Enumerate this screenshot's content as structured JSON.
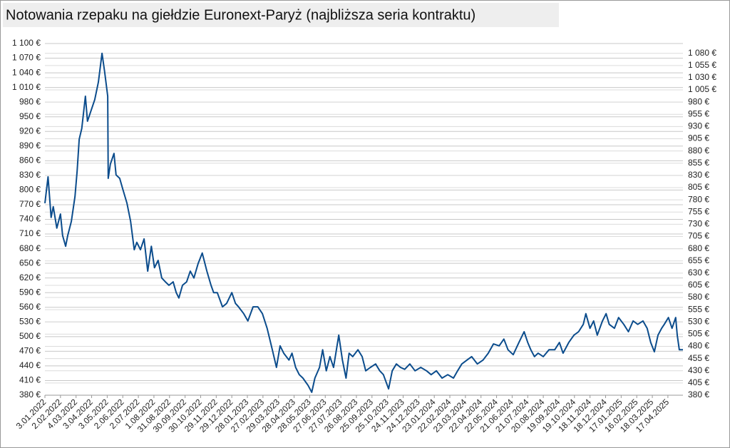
{
  "chart_data": {
    "type": "line",
    "title": "Notowania rzepaku na giełdzie Euronext-Paryż (najbliższa seria kontraktu)",
    "xlim": [
      "2022-01-03",
      "2025-05-16"
    ],
    "xticks": [
      {
        "value": "2022-01-03",
        "label": "3.01.2022"
      },
      {
        "value": "2022-02-02",
        "label": "2.02.2022"
      },
      {
        "value": "2022-03-04",
        "label": "4.03.2022"
      },
      {
        "value": "2022-04-03",
        "label": "3.04.2022"
      },
      {
        "value": "2022-05-03",
        "label": "3.05.2022"
      },
      {
        "value": "2022-06-02",
        "label": "2.06.2022"
      },
      {
        "value": "2022-07-02",
        "label": "2.07.2022"
      },
      {
        "value": "2022-08-01",
        "label": "1.08.2022"
      },
      {
        "value": "2022-08-31",
        "label": "31.08.2022"
      },
      {
        "value": "2022-09-30",
        "label": "30.09.2022"
      },
      {
        "value": "2022-10-30",
        "label": "30.10.2022"
      },
      {
        "value": "2022-11-29",
        "label": "29.11.2022"
      },
      {
        "value": "2022-12-29",
        "label": "29.12.2022"
      },
      {
        "value": "2023-01-28",
        "label": "28.01.2023"
      },
      {
        "value": "2023-02-27",
        "label": "27.02.2023"
      },
      {
        "value": "2023-03-29",
        "label": "29.03.2023"
      },
      {
        "value": "2023-04-28",
        "label": "28.04.2023"
      },
      {
        "value": "2023-05-28",
        "label": "28.05.2023"
      },
      {
        "value": "2023-06-27",
        "label": "27.06.2023"
      },
      {
        "value": "2023-07-27",
        "label": "27.07.2023"
      },
      {
        "value": "2023-08-26",
        "label": "26.08.2023"
      },
      {
        "value": "2023-09-25",
        "label": "25.09.2023"
      },
      {
        "value": "2023-10-25",
        "label": "25.10.2023"
      },
      {
        "value": "2023-11-24",
        "label": "24.11.2023"
      },
      {
        "value": "2023-12-24",
        "label": "24.12.2023"
      },
      {
        "value": "2024-01-23",
        "label": "23.01.2024"
      },
      {
        "value": "2024-02-22",
        "label": "22.02.2024"
      },
      {
        "value": "2024-03-23",
        "label": "23.03.2024"
      },
      {
        "value": "2024-04-22",
        "label": "22.04.2024"
      },
      {
        "value": "2024-05-22",
        "label": "22.05.2024"
      },
      {
        "value": "2024-06-21",
        "label": "21.06.2024"
      },
      {
        "value": "2024-07-21",
        "label": "21.07.2024"
      },
      {
        "value": "2024-08-20",
        "label": "20.08.2024"
      },
      {
        "value": "2024-09-19",
        "label": "19.09.2024"
      },
      {
        "value": "2024-10-19",
        "label": "19.10.2024"
      },
      {
        "value": "2024-11-18",
        "label": "18.11.2024"
      },
      {
        "value": "2024-12-18",
        "label": "18.12.2024"
      },
      {
        "value": "2025-01-17",
        "label": "17.01.2025"
      },
      {
        "value": "2025-02-16",
        "label": "16.02.2025"
      },
      {
        "value": "2025-03-18",
        "label": "18.03.2025"
      },
      {
        "value": "2025-04-17",
        "label": "17.04.2025"
      }
    ],
    "ylim": [
      380,
      1100
    ],
    "yticks": [
      {
        "value": 380,
        "label": "380 €"
      },
      {
        "value": 410,
        "label": "410 €"
      },
      {
        "value": 440,
        "label": "440 €"
      },
      {
        "value": 470,
        "label": "470 €"
      },
      {
        "value": 500,
        "label": "500 €"
      },
      {
        "value": 530,
        "label": "530 €"
      },
      {
        "value": 560,
        "label": "560 €"
      },
      {
        "value": 590,
        "label": "590 €"
      },
      {
        "value": 620,
        "label": "620 €"
      },
      {
        "value": 650,
        "label": "650 €"
      },
      {
        "value": 680,
        "label": "680 €"
      },
      {
        "value": 710,
        "label": "710 €"
      },
      {
        "value": 740,
        "label": "740 €"
      },
      {
        "value": 770,
        "label": "770 €"
      },
      {
        "value": 800,
        "label": "800 €"
      },
      {
        "value": 830,
        "label": "830 €"
      },
      {
        "value": 860,
        "label": "860 €"
      },
      {
        "value": 890,
        "label": "890 €"
      },
      {
        "value": 920,
        "label": "920 €"
      },
      {
        "value": 950,
        "label": "950 €"
      },
      {
        "value": 980,
        "label": "980 €"
      },
      {
        "value": 1010,
        "label": "1 010 €"
      },
      {
        "value": 1040,
        "label": "1 040 €"
      },
      {
        "value": 1070,
        "label": "1 070 €"
      },
      {
        "value": 1100,
        "label": "1 100 €"
      }
    ],
    "y2lim": [
      380,
      1100
    ],
    "y2ticks": [
      {
        "value": 380,
        "label": "380 €"
      },
      {
        "value": 405,
        "label": "405 €"
      },
      {
        "value": 430,
        "label": "430 €"
      },
      {
        "value": 455,
        "label": "455 €"
      },
      {
        "value": 480,
        "label": "480 €"
      },
      {
        "value": 505,
        "label": "505 €"
      },
      {
        "value": 530,
        "label": "530 €"
      },
      {
        "value": 555,
        "label": "555 €"
      },
      {
        "value": 580,
        "label": "580 €"
      },
      {
        "value": 605,
        "label": "605 €"
      },
      {
        "value": 630,
        "label": "630 €"
      },
      {
        "value": 655,
        "label": "655 €"
      },
      {
        "value": 680,
        "label": "680 €"
      },
      {
        "value": 705,
        "label": "705 €"
      },
      {
        "value": 730,
        "label": "730 €"
      },
      {
        "value": 755,
        "label": "755 €"
      },
      {
        "value": 780,
        "label": "780 €"
      },
      {
        "value": 805,
        "label": "805 €"
      },
      {
        "value": 830,
        "label": "830 €"
      },
      {
        "value": 855,
        "label": "855 €"
      },
      {
        "value": 880,
        "label": "880 €"
      },
      {
        "value": 905,
        "label": "905 €"
      },
      {
        "value": 930,
        "label": "930 €"
      },
      {
        "value": 955,
        "label": "955 €"
      },
      {
        "value": 980,
        "label": "980 €"
      },
      {
        "value": 1005,
        "label": "1 005 €"
      },
      {
        "value": 1030,
        "label": "1 030 €"
      },
      {
        "value": 1055,
        "label": "1 055 €"
      },
      {
        "value": 1080,
        "label": "1 080 €"
      }
    ],
    "grid": true,
    "x": [
      "2022-01-03",
      "2022-01-09",
      "2022-01-15",
      "2022-01-19",
      "2022-01-26",
      "2022-02-02",
      "2022-02-06",
      "2022-02-12",
      "2022-02-16",
      "2022-02-23",
      "2022-03-02",
      "2022-03-06",
      "2022-03-10",
      "2022-03-15",
      "2022-03-22",
      "2022-03-26",
      "2022-04-02",
      "2022-04-09",
      "2022-04-16",
      "2022-04-23",
      "2022-04-28",
      "2022-05-04",
      "2022-05-05",
      "2022-05-09",
      "2022-05-16",
      "2022-05-20",
      "2022-05-27",
      "2022-06-02",
      "2022-06-10",
      "2022-06-17",
      "2022-06-24",
      "2022-06-29",
      "2022-07-06",
      "2022-07-13",
      "2022-07-20",
      "2022-07-27",
      "2022-08-02",
      "2022-08-09",
      "2022-08-16",
      "2022-08-23",
      "2022-08-30",
      "2022-09-07",
      "2022-09-13",
      "2022-09-18",
      "2022-09-25",
      "2022-10-03",
      "2022-10-10",
      "2022-10-17",
      "2022-10-25",
      "2022-11-02",
      "2022-11-11",
      "2022-11-19",
      "2022-11-24",
      "2022-12-01",
      "2022-12-11",
      "2022-12-19",
      "2022-12-29",
      "2023-01-05",
      "2023-01-11",
      "2023-01-21",
      "2023-01-29",
      "2023-02-08",
      "2023-02-17",
      "2023-02-26",
      "2023-03-07",
      "2023-03-17",
      "2023-03-25",
      "2023-04-01",
      "2023-04-08",
      "2023-04-18",
      "2023-04-24",
      "2023-05-01",
      "2023-05-08",
      "2023-05-15",
      "2023-05-25",
      "2023-06-01",
      "2023-06-07",
      "2023-06-16",
      "2023-06-22",
      "2023-06-29",
      "2023-07-06",
      "2023-07-13",
      "2023-07-23",
      "2023-07-30",
      "2023-08-06",
      "2023-08-12",
      "2023-08-19",
      "2023-08-29",
      "2023-09-06",
      "2023-09-13",
      "2023-09-22",
      "2023-10-02",
      "2023-10-10",
      "2023-10-17",
      "2023-10-27",
      "2023-11-03",
      "2023-11-11",
      "2023-11-19",
      "2023-11-27",
      "2023-12-07",
      "2023-12-17",
      "2023-12-28",
      "2024-01-08",
      "2024-01-17",
      "2024-01-27",
      "2024-02-07",
      "2024-02-18",
      "2024-02-29",
      "2024-03-08",
      "2024-03-16",
      "2024-03-26",
      "2024-04-04",
      "2024-04-15",
      "2024-04-26",
      "2024-05-06",
      "2024-05-16",
      "2024-05-27",
      "2024-06-05",
      "2024-06-13",
      "2024-06-23",
      "2024-07-04",
      "2024-07-14",
      "2024-07-21",
      "2024-07-27",
      "2024-08-03",
      "2024-08-10",
      "2024-08-20",
      "2024-08-31",
      "2024-09-11",
      "2024-09-20",
      "2024-09-27",
      "2024-10-08",
      "2024-10-18",
      "2024-10-27",
      "2024-11-05",
      "2024-11-10",
      "2024-11-18",
      "2024-11-25",
      "2024-12-02",
      "2024-12-12",
      "2024-12-19",
      "2024-12-25",
      "2025-01-04",
      "2025-01-12",
      "2025-01-22",
      "2025-01-31",
      "2025-02-09",
      "2025-02-18",
      "2025-02-28",
      "2025-03-08",
      "2025-03-15",
      "2025-03-22",
      "2025-03-29",
      "2025-04-05",
      "2025-04-10",
      "2025-04-18",
      "2025-04-25",
      "2025-05-02",
      "2025-05-05",
      "2025-05-09",
      "2025-05-16"
    ],
    "series": [
      {
        "color": "#0b4c8c",
        "values": [
          773,
          827,
          744,
          766,
          722,
          751,
          707,
          685,
          707,
          736,
          787,
          839,
          904,
          926,
          992,
          941,
          963,
          985,
          1021,
          1080,
          1043,
          992,
          824,
          853,
          875,
          831,
          824,
          802,
          773,
          736,
          678,
          693,
          678,
          700,
          634,
          685,
          641,
          656,
          620,
          612,
          605,
          612,
          590,
          579,
          605,
          612,
          634,
          620,
          649,
          671,
          634,
          605,
          590,
          590,
          561,
          568,
          590,
          568,
          561,
          547,
          532,
          561,
          561,
          547,
          517,
          473,
          437,
          481,
          466,
          452,
          466,
          437,
          422,
          415,
          400,
          386,
          415,
          437,
          473,
          430,
          459,
          437,
          503,
          452,
          415,
          466,
          459,
          473,
          459,
          430,
          437,
          444,
          430,
          422,
          393,
          430,
          444,
          437,
          433,
          444,
          430,
          437,
          430,
          422,
          430,
          415,
          422,
          415,
          430,
          444,
          452,
          459,
          444,
          452,
          466,
          485,
          481,
          495,
          473,
          463,
          488,
          510,
          488,
          473,
          459,
          466,
          459,
          473,
          473,
          488,
          466,
          488,
          503,
          510,
          525,
          547,
          517,
          532,
          503,
          532,
          547,
          525,
          517,
          539,
          525,
          510,
          532,
          525,
          532,
          517,
          488,
          469,
          503,
          517,
          525,
          539,
          517,
          539,
          503,
          473,
          473
        ]
      }
    ]
  }
}
